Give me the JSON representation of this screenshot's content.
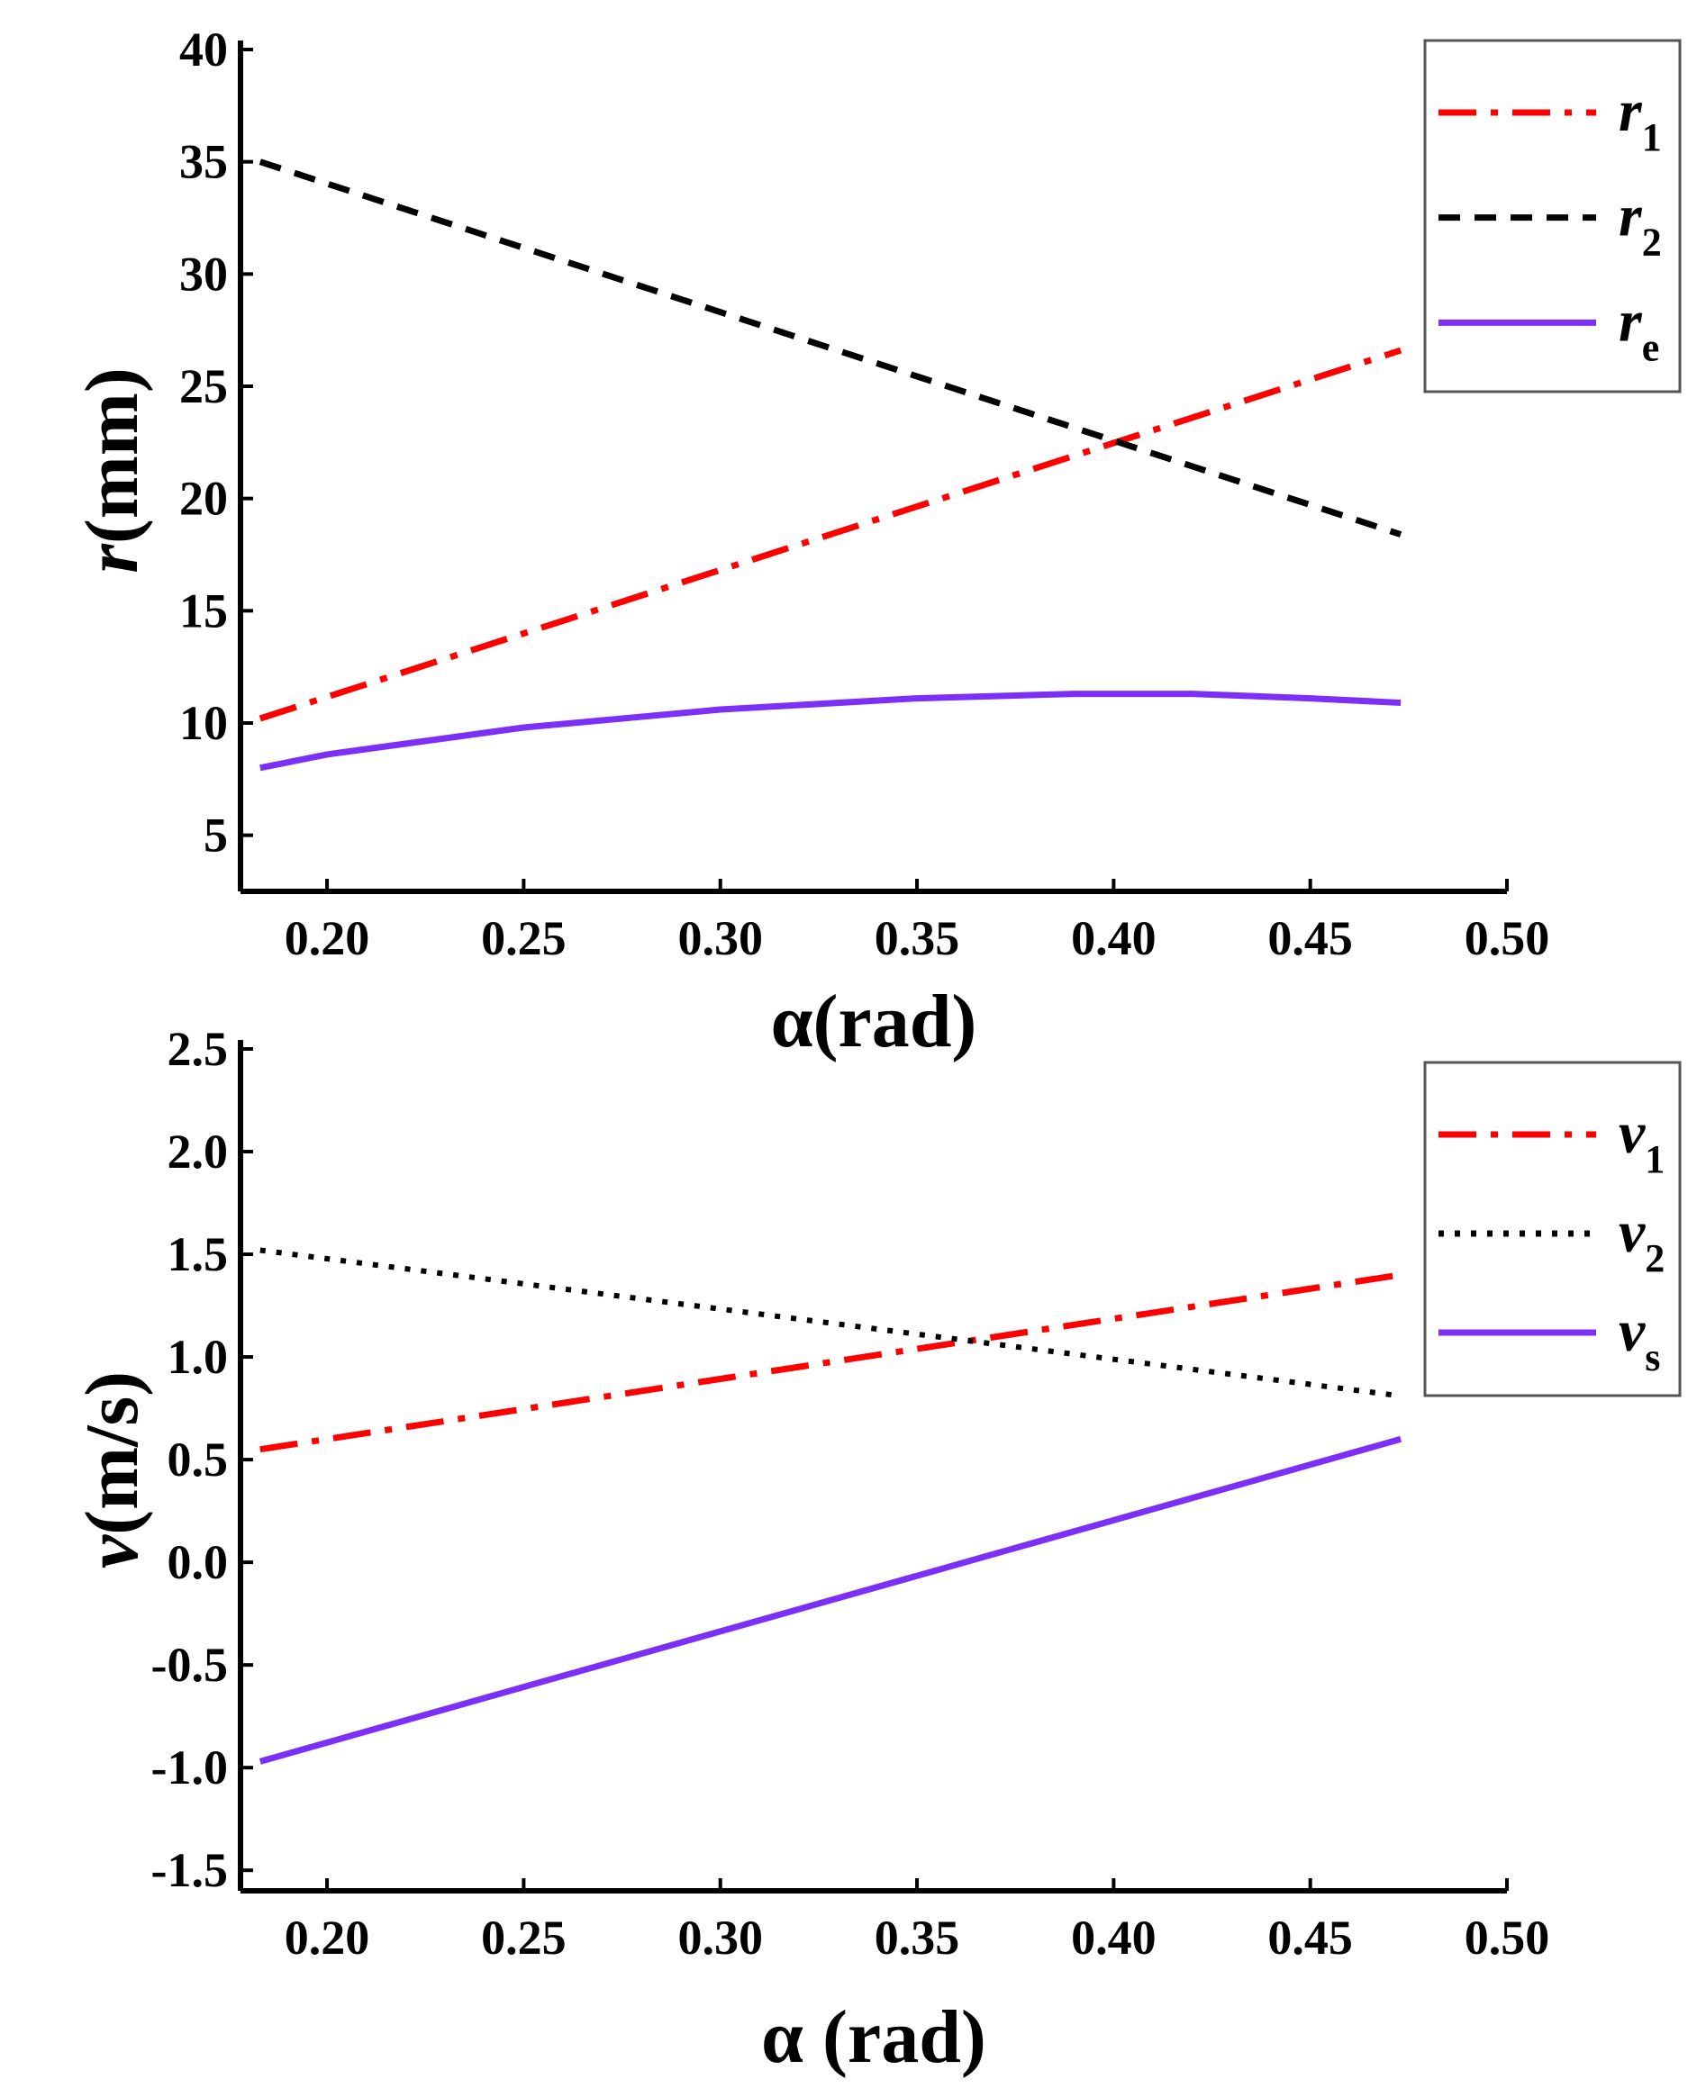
{
  "chart_data": [
    {
      "type": "line",
      "title": "",
      "xlabel": "α(rad)",
      "ylabel": "r(mm)",
      "ylabel_italic": "r",
      "ylabel_rest": "(mm)",
      "xlim": [
        0.178,
        0.5
      ],
      "ylim": [
        2.5,
        40
      ],
      "xticks": [
        0.2,
        0.25,
        0.3,
        0.35,
        0.4,
        0.45,
        0.5
      ],
      "xtick_labels": [
        "0.20",
        "0.25",
        "0.30",
        "0.35",
        "0.40",
        "0.45",
        "0.50"
      ],
      "yticks": [
        5,
        10,
        15,
        20,
        25,
        30,
        35,
        40
      ],
      "ytick_labels": [
        "5",
        "10",
        "15",
        "20",
        "25",
        "30",
        "35",
        "40"
      ],
      "legend_position": "top-right",
      "series": [
        {
          "name": "r1",
          "label_main": "r",
          "label_sub": "1",
          "color": "#ff0000",
          "dash": "dashdot",
          "x": [
            0.183,
            0.473
          ],
          "values": [
            10.2,
            26.6
          ]
        },
        {
          "name": "r2",
          "label_main": "r",
          "label_sub": "2",
          "color": "#000000",
          "dash": "dash",
          "x": [
            0.183,
            0.473
          ],
          "values": [
            35.0,
            18.4
          ]
        },
        {
          "name": "re",
          "label_main": "r",
          "label_sub": "e",
          "color": "#7b2ff7",
          "dash": "solid",
          "x": [
            0.183,
            0.2,
            0.25,
            0.3,
            0.35,
            0.39,
            0.42,
            0.45,
            0.473
          ],
          "values": [
            8.0,
            8.6,
            9.8,
            10.6,
            11.1,
            11.3,
            11.3,
            11.1,
            10.9
          ]
        }
      ]
    },
    {
      "type": "line",
      "title": "",
      "xlabel": "α (rad)",
      "ylabel": "v(m/s)",
      "ylabel_italic": "v",
      "ylabel_rest": "(m/s)",
      "xlim": [
        0.178,
        0.5
      ],
      "ylim": [
        -1.6,
        2.5
      ],
      "xticks": [
        0.2,
        0.25,
        0.3,
        0.35,
        0.4,
        0.45,
        0.5
      ],
      "xtick_labels": [
        "0.20",
        "0.25",
        "0.30",
        "0.35",
        "0.40",
        "0.45",
        "0.50"
      ],
      "yticks": [
        -1.5,
        -1.0,
        -0.5,
        0.0,
        0.5,
        1.0,
        1.5,
        2.0,
        2.5
      ],
      "ytick_labels": [
        "-1.5",
        "-1.0",
        "-0.5",
        "0.0",
        "0.5",
        "1.0",
        "1.5",
        "2.0",
        "2.5"
      ],
      "legend_position": "top-right",
      "series": [
        {
          "name": "v1",
          "label_main": "v",
          "label_sub": "1",
          "color": "#ff0000",
          "dash": "dashdot",
          "x": [
            0.183,
            0.473
          ],
          "values": [
            0.55,
            1.4
          ]
        },
        {
          "name": "v2",
          "label_main": "v",
          "label_sub": "2",
          "color": "#000000",
          "dash": "dot",
          "x": [
            0.183,
            0.473
          ],
          "values": [
            1.52,
            0.81
          ]
        },
        {
          "name": "vs",
          "label_main": "v",
          "label_sub": "s",
          "color": "#7b2ff7",
          "dash": "solid",
          "x": [
            0.183,
            0.473
          ],
          "values": [
            -0.97,
            0.6
          ]
        }
      ]
    }
  ]
}
